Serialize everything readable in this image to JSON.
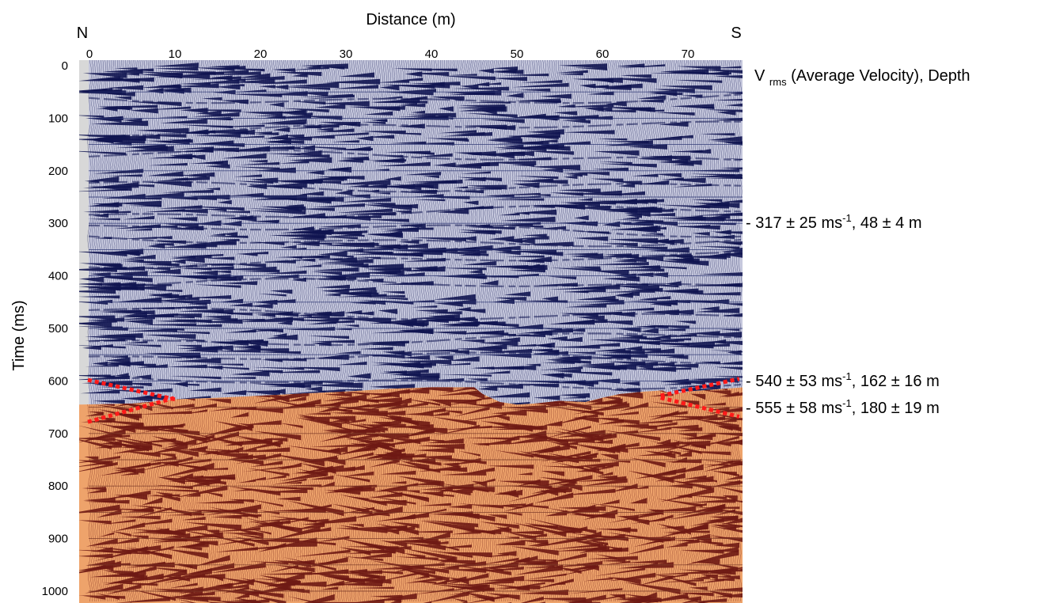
{
  "chart_data": {
    "type": "seismic-section",
    "xlabel": "Distance (m)",
    "ylabel": "Time (ms)",
    "xlim": [
      0,
      76
    ],
    "ylim": [
      0,
      1000
    ],
    "x_ticks": [
      "0",
      "10",
      "20",
      "30",
      "40",
      "50",
      "60",
      "70"
    ],
    "y_ticks": [
      "0",
      "100",
      "200",
      "300",
      "400",
      "500",
      "600",
      "700",
      "800",
      "900",
      "1000"
    ],
    "direction_labels": {
      "left": "N",
      "right": "S"
    },
    "legend_title": {
      "main": "V",
      "sub": "rms",
      "rest": " (Average Velocity), Depth"
    },
    "annotations": [
      {
        "time_ms": 300,
        "pre": "- 317 ± 25  ms",
        "sup": "-1",
        "post": ", 48 ± 4  m"
      },
      {
        "time_ms": 600,
        "pre": "- 540 ± 53 ms",
        "sup": "-1",
        "post": ", 162 ± 16  m"
      },
      {
        "time_ms": 650,
        "pre": "- 555 ± 58 ms",
        "sup": "-1",
        "post": ", 180 ± 19  m"
      }
    ],
    "boundary_ms": {
      "x": [
        0,
        5,
        10,
        15,
        20,
        25,
        30,
        35,
        40,
        44,
        45,
        46,
        48,
        50,
        52,
        55,
        58,
        60,
        62,
        65,
        67,
        68,
        70,
        76
      ],
      "t": [
        645,
        643,
        635,
        632,
        628,
        624,
        620,
        615,
        612,
        612,
        612,
        625,
        640,
        645,
        643,
        638,
        640,
        632,
        625,
        620,
        618,
        625,
        620,
        612
      ]
    },
    "red_dashed_lines": [
      {
        "x": [
          0,
          10
        ],
        "t": [
          598,
          635
        ]
      },
      {
        "x": [
          0,
          10
        ],
        "t": [
          678,
          632
        ]
      },
      {
        "x": [
          67,
          76
        ],
        "t": [
          628,
          596
        ]
      },
      {
        "x": [
          67,
          76
        ],
        "t": [
          632,
          668
        ]
      }
    ],
    "colors": {
      "upper_fill": "#c6c8dd",
      "upper_wiggle": "#0f1450",
      "lower_fill": "#eea36b",
      "lower_wiggle": "#6e1a14",
      "margin": "#d8d8d8",
      "pick": "#ff1a1a",
      "gridline_upper": "#2b3472",
      "gridline_lower": "#7a3a28"
    }
  }
}
